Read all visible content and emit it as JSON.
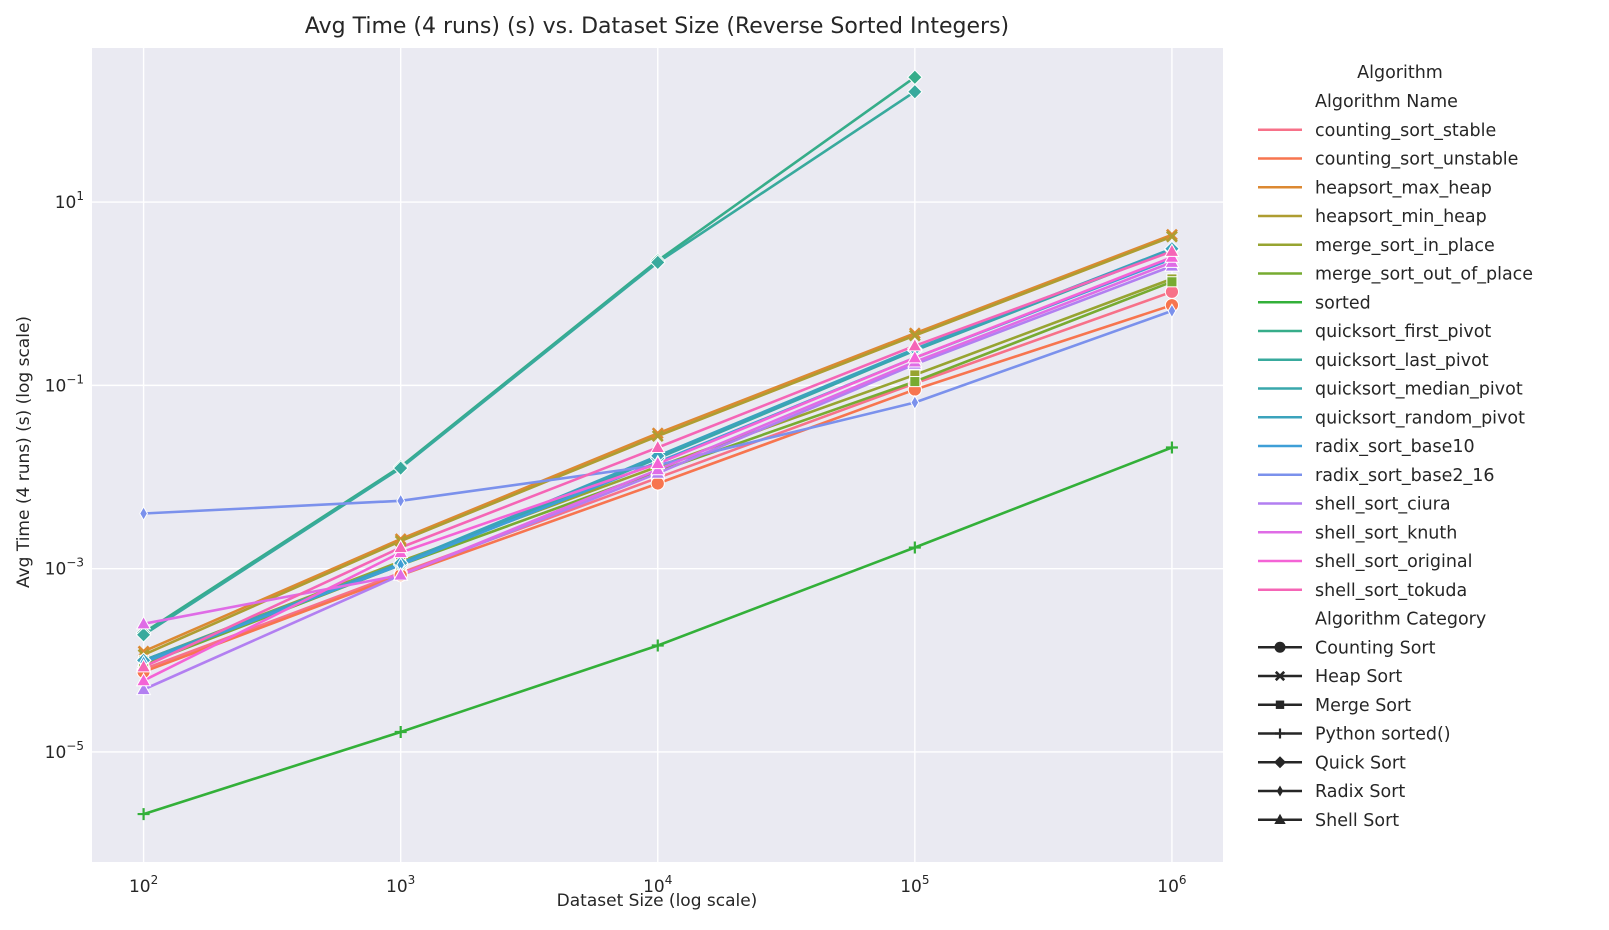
{
  "chart_data": {
    "type": "line",
    "title": "Avg Time (4 runs) (s) vs. Dataset Size (Reverse Sorted Integers)",
    "xlabel": "Dataset Size (log scale)",
    "ylabel": "Avg Time (4 runs) (s) (log scale)",
    "xscale": "log",
    "yscale": "log",
    "xlim": [
      63,
      1580000
    ],
    "ylim": [
      6.3e-07,
      480
    ],
    "x_ticks": [
      {
        "value": 100,
        "base": "10",
        "exp": "2"
      },
      {
        "value": 1000,
        "base": "10",
        "exp": "3"
      },
      {
        "value": 10000,
        "base": "10",
        "exp": "4"
      },
      {
        "value": 100000,
        "base": "10",
        "exp": "5"
      },
      {
        "value": 1000000,
        "base": "10",
        "exp": "6"
      }
    ],
    "y_ticks": [
      {
        "value": 1e-05,
        "base": "10",
        "exp": "−5"
      },
      {
        "value": 0.001,
        "base": "10",
        "exp": "−3"
      },
      {
        "value": 0.1,
        "base": "10",
        "exp": "−1"
      },
      {
        "value": 10,
        "base": "10",
        "exp": "1"
      }
    ],
    "grid": true,
    "legend_position": "right",
    "legend": {
      "title": "Algorithm",
      "hue_title": "Algorithm Name",
      "style_title": "Algorithm Category",
      "styles": [
        {
          "name": "Counting Sort",
          "marker": "circle"
        },
        {
          "name": "Heap Sort",
          "marker": "x"
        },
        {
          "name": "Merge Sort",
          "marker": "square"
        },
        {
          "name": "Python sorted()",
          "marker": "plus"
        },
        {
          "name": "Quick Sort",
          "marker": "diamond"
        },
        {
          "name": "Radix Sort",
          "marker": "thin-diamond"
        },
        {
          "name": "Shell Sort",
          "marker": "triangle"
        }
      ]
    },
    "series": [
      {
        "name": "counting_sort_stable",
        "color": "#f77189",
        "marker": "circle",
        "x": [
          100,
          1000,
          10000,
          100000,
          1000000
        ],
        "y": [
          8e-05,
          0.0009,
          0.0098,
          0.105,
          1.05
        ]
      },
      {
        "name": "counting_sort_unstable",
        "color": "#f7754f",
        "marker": "circle",
        "x": [
          100,
          1000,
          10000,
          100000,
          1000000
        ],
        "y": [
          7.5e-05,
          0.00085,
          0.0085,
          0.09,
          0.75
        ]
      },
      {
        "name": "heapsort_max_heap",
        "color": "#dc8932",
        "marker": "x",
        "x": [
          100,
          1000,
          10000,
          100000,
          1000000
        ],
        "y": [
          0.000125,
          0.0021,
          0.03,
          0.37,
          4.4
        ]
      },
      {
        "name": "heapsort_min_heap",
        "color": "#ae9d31",
        "marker": "x",
        "x": [
          100,
          1000,
          10000,
          100000,
          1000000
        ],
        "y": [
          0.000115,
          0.002,
          0.028,
          0.35,
          4.2
        ]
      },
      {
        "name": "merge_sort_in_place",
        "color": "#97a431",
        "marker": "square",
        "x": [
          100,
          1000,
          10000,
          100000,
          1000000
        ],
        "y": [
          0.0001,
          0.0012,
          0.013,
          0.13,
          1.45
        ]
      },
      {
        "name": "merge_sort_out_of_place",
        "color": "#77ab31",
        "marker": "square",
        "x": [
          100,
          1000,
          10000,
          100000,
          1000000
        ],
        "y": [
          9e-05,
          0.0011,
          0.0115,
          0.11,
          1.35
        ]
      },
      {
        "name": "sorted",
        "color": "#33b039",
        "marker": "plus",
        "x": [
          100,
          1000,
          10000,
          100000,
          1000000
        ],
        "y": [
          2.1e-06,
          1.65e-05,
          0.000145,
          0.0017,
          0.021
        ]
      },
      {
        "name": "quicksort_first_pivot",
        "color": "#36ad8a",
        "marker": "diamond",
        "x": [
          100,
          1000,
          10000,
          100000
        ],
        "y": [
          0.0002,
          0.013,
          2.3,
          230
        ]
      },
      {
        "name": "quicksort_last_pivot",
        "color": "#38aa9d",
        "marker": "diamond",
        "x": [
          100,
          1000,
          10000,
          100000
        ],
        "y": [
          0.00019,
          0.0125,
          2.2,
          160
        ]
      },
      {
        "name": "quicksort_median_pivot",
        "color": "#39a7ac",
        "marker": "diamond",
        "x": [
          100,
          1000,
          10000,
          100000,
          1000000
        ],
        "y": [
          0.0001,
          0.0011,
          0.016,
          0.24,
          3.0
        ]
      },
      {
        "name": "quicksort_random_pivot",
        "color": "#3ba3bc",
        "marker": "diamond",
        "x": [
          100,
          1000,
          10000,
          100000,
          1000000
        ],
        "y": [
          0.0001,
          0.00115,
          0.017,
          0.25,
          3.1
        ]
      },
      {
        "name": "radix_sort_base10",
        "color": "#3e9fd7",
        "marker": "thin-diamond",
        "x": [
          100,
          1000,
          10000,
          100000,
          1000000
        ],
        "y": [
          9.5e-05,
          0.0011,
          0.0145,
          0.2,
          2.4
        ]
      },
      {
        "name": "radix_sort_base2_16",
        "color": "#7b91ec",
        "marker": "thin-diamond",
        "x": [
          100,
          1000,
          10000,
          100000,
          1000000
        ],
        "y": [
          0.004,
          0.0055,
          0.0135,
          0.065,
          0.65
        ]
      },
      {
        "name": "shell_sort_ciura",
        "color": "#b27ff1",
        "marker": "triangle",
        "x": [
          100,
          1000,
          10000,
          100000,
          1000000
        ],
        "y": [
          4.8e-05,
          0.00085,
          0.011,
          0.17,
          2.0
        ]
      },
      {
        "name": "shell_sort_knuth",
        "color": "#df6ce6",
        "marker": "triangle",
        "x": [
          100,
          1000,
          10000,
          100000,
          1000000
        ],
        "y": [
          0.00025,
          0.00085,
          0.012,
          0.18,
          2.2
        ]
      },
      {
        "name": "shell_sort_original",
        "color": "#f463d6",
        "marker": "triangle",
        "x": [
          100,
          1000,
          10000,
          100000,
          1000000
        ],
        "y": [
          6e-05,
          0.0015,
          0.014,
          0.2,
          2.5
        ]
      },
      {
        "name": "shell_sort_tokuda",
        "color": "#f565b6",
        "marker": "triangle",
        "x": [
          100,
          1000,
          10000,
          100000,
          1000000
        ],
        "y": [
          8.5e-05,
          0.0017,
          0.021,
          0.27,
          2.9
        ]
      }
    ]
  }
}
